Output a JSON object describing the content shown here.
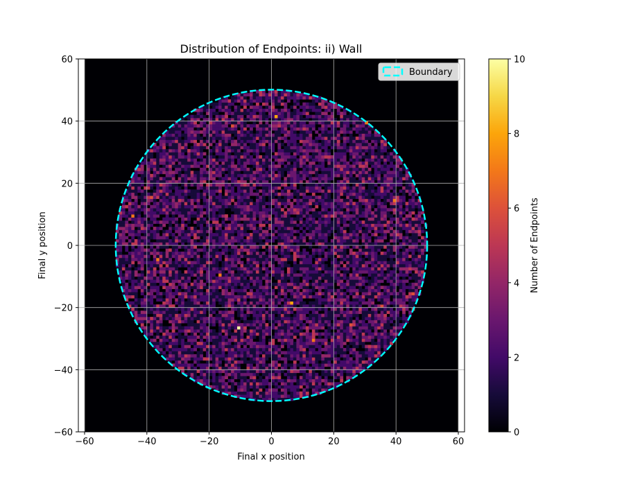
{
  "chart_data": {
    "type": "heatmap",
    "title": "Distribution of Endpoints: ii) Wall",
    "xlabel": "Final x position",
    "ylabel": "Final y position",
    "xlim": [
      -62,
      62
    ],
    "ylim": [
      -60,
      60
    ],
    "xticks": [
      -60,
      -40,
      -20,
      0,
      20,
      40,
      60
    ],
    "yticks": [
      -60,
      -40,
      -20,
      0,
      20,
      40,
      60
    ],
    "xtick_labels": [
      "−60",
      "−40",
      "−20",
      "0",
      "20",
      "40",
      "60"
    ],
    "ytick_labels": [
      "−60",
      "−40",
      "−20",
      "0",
      "20",
      "40",
      "60"
    ],
    "grid": true,
    "bins": 120,
    "boundary": {
      "type": "circle",
      "center": [
        0,
        0
      ],
      "radius": 50,
      "color": "#00ffff",
      "style": "dashed"
    },
    "legend": {
      "position": "top-right",
      "label": "Boundary"
    },
    "colorbar": {
      "label": "Number of Endpoints",
      "range": [
        0,
        10
      ],
      "ticks": [
        0,
        2,
        4,
        6,
        8,
        10
      ],
      "tick_labels": [
        "0",
        "2",
        "4",
        "6",
        "8",
        "10"
      ],
      "colormap": "inferno"
    },
    "typical_count_inside": 2,
    "count_range_inside": [
      0,
      10
    ],
    "notable_cells": [
      {
        "x": 1,
        "y": 41,
        "value": 8
      },
      {
        "x": -10.5,
        "y": -27,
        "value": 10
      },
      {
        "x": 6.5,
        "y": -18.5,
        "value": 8
      },
      {
        "x": 30.5,
        "y": 39,
        "value": 7
      },
      {
        "x": -16.5,
        "y": -10,
        "value": 7
      },
      {
        "x": -36.5,
        "y": -5,
        "value": 7
      },
      {
        "x": -44.5,
        "y": 9,
        "value": 7
      },
      {
        "x": 13.5,
        "y": -30.5,
        "value": 7
      },
      {
        "x": 39.5,
        "y": 14,
        "value": 7
      },
      {
        "x": 35.5,
        "y": -19.5,
        "value": 6
      },
      {
        "x": -12.5,
        "y": 38.5,
        "value": 6
      },
      {
        "x": 25.5,
        "y": -25.5,
        "value": 6
      },
      {
        "x": -38.5,
        "y": 15.5,
        "value": 6
      },
      {
        "x": 45.5,
        "y": -16,
        "value": 6
      }
    ]
  }
}
